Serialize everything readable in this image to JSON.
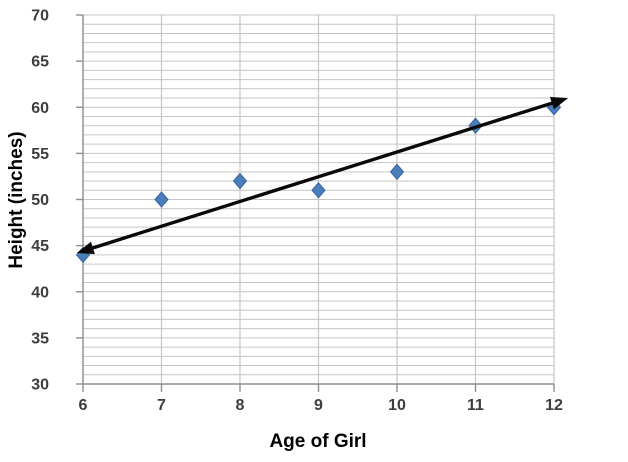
{
  "chart_data": {
    "type": "scatter",
    "title": "",
    "xlabel": "Age of Girl",
    "ylabel": "Height (inches)",
    "x": [
      6,
      7,
      8,
      9,
      10,
      11,
      12
    ],
    "y": [
      44,
      50,
      52,
      51,
      53,
      58,
      60
    ],
    "xlim": [
      6,
      12
    ],
    "ylim": [
      30,
      70
    ],
    "x_ticks": [
      6,
      7,
      8,
      9,
      10,
      11,
      12
    ],
    "y_ticks": [
      30,
      35,
      40,
      45,
      50,
      55,
      60,
      65,
      70
    ],
    "y_minor_gridline_step": 1,
    "x_gridline_step": 1,
    "grid": "on",
    "legend": "none",
    "trend_line": {
      "x1": 5.92,
      "y1": 44.2,
      "x2": 12.18,
      "y2": 61.0,
      "arrows": "both",
      "color": "#0a0a0a",
      "width": 3.4
    },
    "marker": {
      "shape": "diamond",
      "fill": "#4a7ebb",
      "border": "#38659f",
      "half_width": 6.5,
      "half_height": 7.5
    },
    "colors": {
      "background": "#ffffff",
      "gridline": "#c6c6c6",
      "axis": "#8f8f8f",
      "tick_label": "#3d3d3d",
      "axis_title": "#000000"
    }
  }
}
